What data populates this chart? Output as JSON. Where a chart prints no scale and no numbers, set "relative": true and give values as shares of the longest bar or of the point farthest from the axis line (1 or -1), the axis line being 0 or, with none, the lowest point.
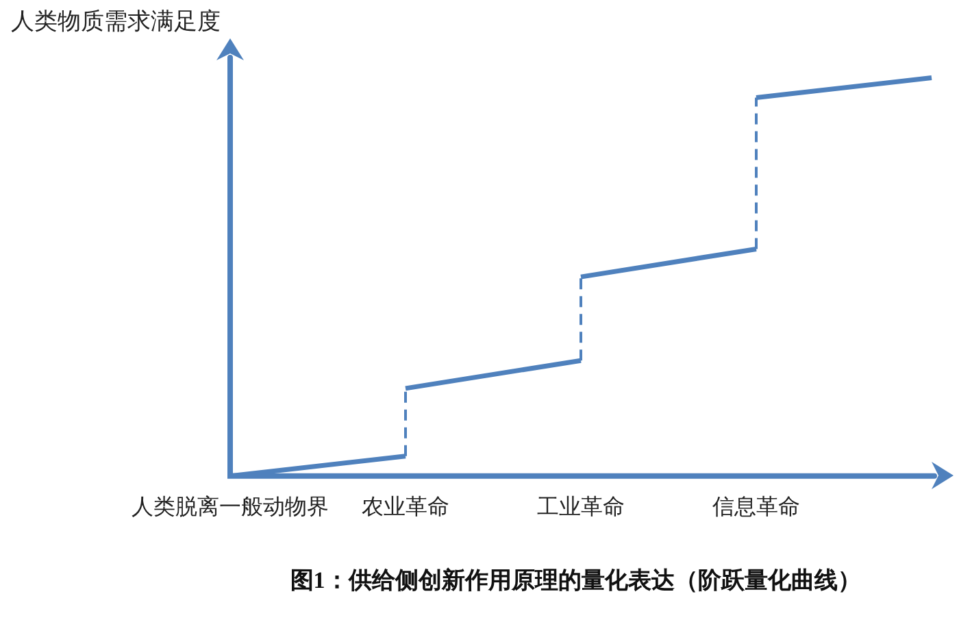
{
  "chart_data": {
    "type": "line",
    "title": "图1：供给侧创新作用原理的量化表达（阶跃量化曲线）",
    "ylabel": "人类物质需求满足度",
    "relative": true,
    "categories": [
      "人类脱离一般动物界",
      "农业革命",
      "工业革命",
      "信息革命",
      null
    ],
    "series": [
      {
        "color": "#4f81bd",
        "values": [
          0,
          0.05,
          null,
          null,
          null
        ]
      },
      {
        "color": "#4f81bd",
        "values": [
          null,
          0.22,
          0.29,
          null,
          null
        ]
      },
      {
        "color": "#4f81bd",
        "values": [
          null,
          null,
          0.5,
          0.57,
          null
        ]
      },
      {
        "color": "#4f81bd",
        "values": [
          null,
          null,
          null,
          0.95,
          1
        ]
      },
      {
        "color": "#4f81bd",
        "x": [
          "农业革命",
          "农业革命"
        ],
        "values": [
          0.05,
          0.22
        ],
        "line_style": "dashed"
      },
      {
        "color": "#4f81bd",
        "x": [
          "工业革命",
          "工业革命"
        ],
        "values": [
          0.29,
          0.5
        ],
        "line_style": "dashed"
      },
      {
        "color": "#4f81bd",
        "x": [
          "信息革命",
          "信息革命"
        ],
        "values": [
          0.57,
          0.95
        ],
        "line_style": "dashed"
      }
    ],
    "grid": false,
    "legend": false,
    "marker": "none",
    "line_style": "solid"
  }
}
